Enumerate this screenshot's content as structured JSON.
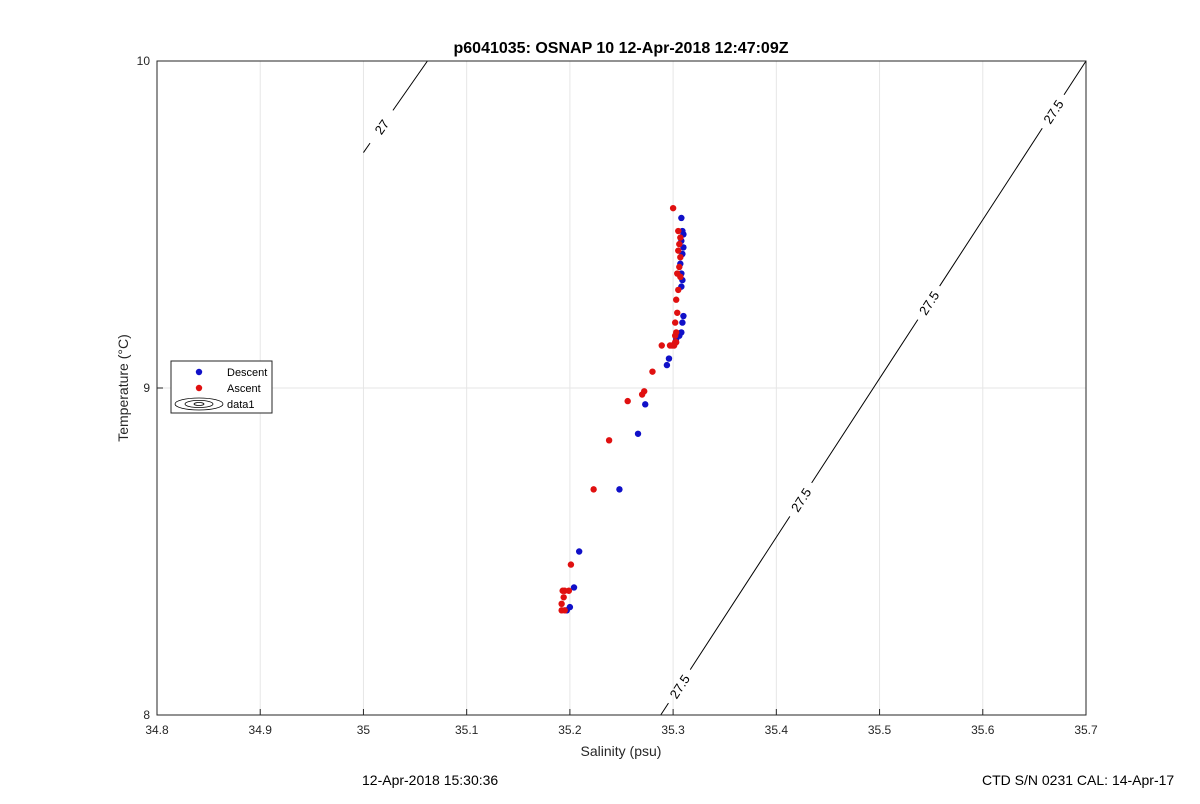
{
  "chart_data": {
    "type": "scatter",
    "title": "p6041035: OSNAP 10 12-Apr-2018 12:47:09Z",
    "xlabel": "Salinity (psu)",
    "ylabel": "Temperature (°C)",
    "xlim": [
      34.8,
      35.7
    ],
    "ylim": [
      8,
      10
    ],
    "xticks": [
      34.8,
      34.9,
      35,
      35.1,
      35.2,
      35.3,
      35.4,
      35.5,
      35.6,
      35.7
    ],
    "xtick_labels": [
      "34.8",
      "34.9",
      "35",
      "35.1",
      "35.2",
      "35.3",
      "35.4",
      "35.5",
      "35.6",
      "35.7"
    ],
    "yticks": [
      8,
      9,
      10
    ],
    "ytick_labels": [
      "8",
      "9",
      "10"
    ],
    "grid": true,
    "legend_position": "left",
    "legend": [
      "Descent",
      "Ascent",
      "data1"
    ],
    "series": [
      {
        "name": "Descent",
        "color": "#1010c8",
        "x": [
          35.308,
          35.309,
          35.31,
          35.308,
          35.31,
          35.309,
          35.307,
          35.308,
          35.309,
          35.308,
          35.31,
          35.309,
          35.308,
          35.306,
          35.303,
          35.296,
          35.294,
          35.273,
          35.266,
          35.248,
          35.209,
          35.204,
          35.2,
          35.197
        ],
        "y": [
          9.52,
          9.48,
          9.47,
          9.45,
          9.43,
          9.41,
          9.38,
          9.35,
          9.33,
          9.31,
          9.22,
          9.2,
          9.17,
          9.16,
          9.15,
          9.09,
          9.07,
          8.95,
          8.86,
          8.69,
          8.5,
          8.39,
          8.33,
          8.32
        ]
      },
      {
        "name": "Ascent",
        "color": "#e01010",
        "x": [
          35.3,
          35.305,
          35.307,
          35.306,
          35.305,
          35.307,
          35.306,
          35.304,
          35.307,
          35.305,
          35.303,
          35.304,
          35.302,
          35.303,
          35.302,
          35.303,
          35.302,
          35.301,
          35.299,
          35.297,
          35.289,
          35.28,
          35.272,
          35.27,
          35.256,
          35.238,
          35.223,
          35.201,
          35.199,
          35.195,
          35.193,
          35.194,
          35.192,
          35.192,
          35.195
        ],
        "y": [
          9.55,
          9.48,
          9.46,
          9.44,
          9.42,
          9.4,
          9.37,
          9.35,
          9.34,
          9.3,
          9.27,
          9.23,
          9.2,
          9.17,
          9.16,
          9.14,
          9.14,
          9.13,
          9.13,
          9.13,
          9.13,
          9.05,
          8.99,
          8.98,
          8.96,
          8.84,
          8.69,
          8.46,
          8.38,
          8.38,
          8.38,
          8.36,
          8.34,
          8.32,
          8.32
        ]
      }
    ],
    "contours": [
      {
        "level": 27,
        "label": "27",
        "points": [
          [
            35.0,
            9.72
          ],
          [
            35.062,
            10.0
          ]
        ],
        "labels_at": [
          [
            35.017,
            9.8
          ]
        ]
      },
      {
        "level": 27.5,
        "label": "27.5",
        "points": [
          [
            35.288,
            8.0
          ],
          [
            35.7,
            10.0
          ]
        ],
        "labels_at": [
          [
            35.3,
            8.1
          ],
          [
            35.423,
            8.66
          ],
          [
            35.543,
            9.27
          ],
          [
            35.666,
            9.85
          ]
        ]
      }
    ]
  },
  "footer": {
    "timestamp": "12-Apr-2018 15:30:36",
    "instrument": "CTD S/N 0231  CAL: 14-Apr-17"
  }
}
